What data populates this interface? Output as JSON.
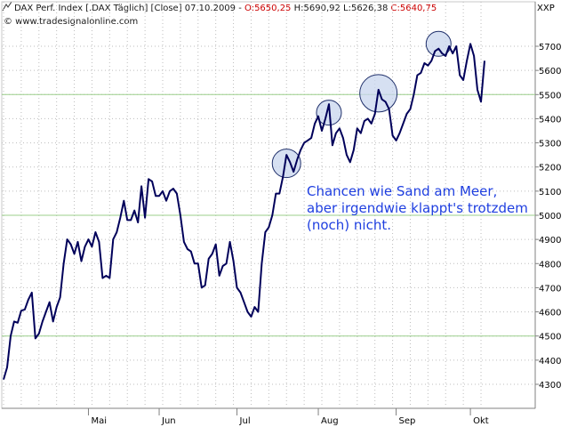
{
  "header": {
    "prefix": "DAX Perf. Index [.DAX  Täglich] [Close] 07.10.2009 - ",
    "open": "O:5650,25",
    "sep1": " H:5690,92 L:5626,38 ",
    "close": "C:5640,75",
    "watermark": "© www.tradesignalonline.com",
    "axis_symbol": "XXP"
  },
  "annotation": {
    "lines": [
      "Chancen wie Sand am Meer,",
      "aber irgendwie klappt's trotzdem",
      "(noch) nicht."
    ]
  },
  "colors": {
    "line": "#00005a",
    "circle_stroke": "#1f2f6a",
    "circle_fill": "#c8d6ee",
    "hline": "#9bcf8b",
    "grid": "#bdbdbd"
  },
  "chart_data": {
    "type": "line",
    "title": "DAX Perf. Index [.DAX Täglich] [Close]",
    "ylim": [
      4200,
      5880
    ],
    "y_ticks": [
      4300,
      4400,
      4500,
      4600,
      4700,
      4800,
      4900,
      5000,
      5100,
      5200,
      5300,
      5400,
      5500,
      5600,
      5700
    ],
    "x_month_labels": [
      {
        "label": "Mai",
        "index": 24
      },
      {
        "label": "Jun",
        "index": 44
      },
      {
        "label": "Jul",
        "index": 66
      },
      {
        "label": "Aug",
        "index": 89
      },
      {
        "label": "Sep",
        "index": 111
      },
      {
        "label": "Okt",
        "index": 132
      }
    ],
    "x_count": 137,
    "horizontal_lines": [
      4500,
      5000,
      5500
    ],
    "highlight_circles": [
      {
        "index": 80,
        "value": 5215
      },
      {
        "index": 92,
        "value": 5425
      },
      {
        "index": 106,
        "value": 5505
      },
      {
        "index": 123,
        "value": 5710
      }
    ],
    "series": [
      {
        "values": [
          4320,
          4370,
          4500,
          4560,
          4555,
          4605,
          4610,
          4650,
          4680,
          4490,
          4510,
          4560,
          4600,
          4640,
          4560,
          4620,
          4660,
          4800,
          4900,
          4880,
          4840,
          4890,
          4810,
          4870,
          4900,
          4870,
          4930,
          4890,
          4740,
          4750,
          4740,
          4900,
          4930,
          4990,
          5060,
          4980,
          4980,
          5020,
          4970,
          5120,
          4990,
          5150,
          5140,
          5080,
          5080,
          5100,
          5060,
          5100,
          5110,
          5090,
          5000,
          4890,
          4860,
          4850,
          4800,
          4800,
          4700,
          4710,
          4820,
          4840,
          4880,
          4750,
          4790,
          4800,
          4890,
          4810,
          4700,
          4680,
          4640,
          4600,
          4580,
          4620,
          4600,
          4800,
          4930,
          4950,
          5000,
          5090,
          5090,
          5160,
          5250,
          5220,
          5180,
          5230,
          5270,
          5300,
          5310,
          5320,
          5380,
          5410,
          5350,
          5400,
          5460,
          5290,
          5340,
          5360,
          5320,
          5250,
          5220,
          5270,
          5360,
          5340,
          5390,
          5400,
          5380,
          5420,
          5520,
          5480,
          5470,
          5440,
          5330,
          5310,
          5340,
          5380,
          5420,
          5440,
          5500,
          5580,
          5590,
          5630,
          5620,
          5640,
          5680,
          5690,
          5670,
          5660,
          5700,
          5670,
          5700,
          5580,
          5560,
          5640,
          5710,
          5660,
          5520,
          5470,
          5640
        ]
      }
    ]
  }
}
